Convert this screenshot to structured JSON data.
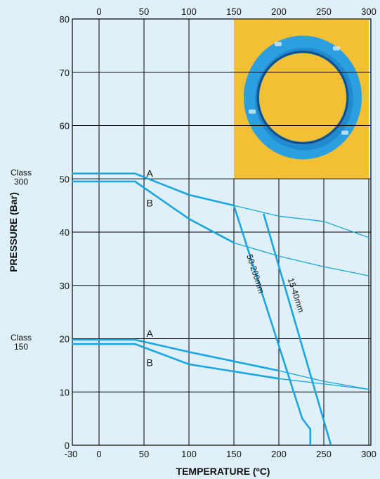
{
  "colors": {
    "background": "#dff0f8",
    "grid": "#000000",
    "curve": "#1aa6e0",
    "photo_bg": "#f2bf35",
    "gasket_outer": "#2b9fe0",
    "gasket_inner": "#1c7fc4"
  },
  "chart_data": {
    "type": "line",
    "xlabel": "TEMPERATURE (ºC)",
    "ylabel": "PRESSURE (Bar)",
    "xlim": [
      -30,
      300
    ],
    "ylim": [
      0,
      80
    ],
    "x_ticks_bottom": [
      "-30",
      "0",
      "50",
      "100",
      "150",
      "200",
      "250",
      "300"
    ],
    "x_ticks_top": [
      "0",
      "50",
      "100",
      "150",
      "200",
      "250",
      "300"
    ],
    "y_ticks": [
      "0",
      "10",
      "20",
      "30",
      "40",
      "50",
      "60",
      "70",
      "80"
    ],
    "grid": true,
    "class_labels": [
      {
        "line1": "Class",
        "line2": "300",
        "y": 50
      },
      {
        "line1": "Class",
        "line2": "150",
        "y": 19
      }
    ],
    "curve_labels": [
      {
        "text": "A",
        "x": 48,
        "y": 51
      },
      {
        "text": "B",
        "x": 48,
        "y": 45.5
      },
      {
        "text": "A",
        "x": 48,
        "y": 21
      },
      {
        "text": "B",
        "x": 48,
        "y": 15.5
      }
    ],
    "size_labels": [
      {
        "text": "50-200mm",
        "x": 171,
        "y": 32
      },
      {
        "text": "15-40mm",
        "x": 216,
        "y": 28
      }
    ],
    "series": [
      {
        "id": "c300A",
        "width": 2.6,
        "points": [
          [
            -30,
            51
          ],
          [
            40,
            51
          ],
          [
            100,
            47
          ],
          [
            150,
            45
          ]
        ]
      },
      {
        "id": "c300A_thin",
        "width": 1.3,
        "points": [
          [
            150,
            45
          ],
          [
            200,
            43
          ],
          [
            250,
            42
          ],
          [
            300,
            39
          ]
        ]
      },
      {
        "id": "c300B",
        "width": 2.6,
        "points": [
          [
            -30,
            49.5
          ],
          [
            40,
            49.5
          ],
          [
            100,
            42.5
          ],
          [
            150,
            38
          ]
        ]
      },
      {
        "id": "c300B_thin",
        "width": 1.3,
        "points": [
          [
            150,
            38
          ],
          [
            200,
            35.5
          ],
          [
            250,
            33.5
          ],
          [
            300,
            31.8
          ]
        ]
      },
      {
        "id": "c150A",
        "width": 2.6,
        "points": [
          [
            -30,
            19.8
          ],
          [
            40,
            19.8
          ],
          [
            100,
            17.5
          ],
          [
            200,
            14
          ]
        ]
      },
      {
        "id": "c150A_thin",
        "width": 1.3,
        "points": [
          [
            200,
            14
          ],
          [
            250,
            12
          ],
          [
            300,
            10.5
          ]
        ]
      },
      {
        "id": "c150B",
        "width": 2.6,
        "points": [
          [
            -30,
            19
          ],
          [
            40,
            19
          ],
          [
            100,
            15.2
          ],
          [
            200,
            12.5
          ]
        ]
      },
      {
        "id": "c150B_thin",
        "width": 1.3,
        "points": [
          [
            200,
            12.5
          ],
          [
            250,
            11.5
          ],
          [
            300,
            10.5
          ]
        ]
      },
      {
        "id": "lim50_200",
        "width": 2.6,
        "points": [
          [
            150,
            45
          ],
          [
            226,
            5
          ],
          [
            235,
            3
          ],
          [
            235,
            0
          ]
        ]
      },
      {
        "id": "lim15_40",
        "width": 2.6,
        "points": [
          [
            183,
            43.5
          ],
          [
            258,
            0
          ]
        ]
      }
    ]
  },
  "photo": {
    "x0": 150,
    "x1": 300,
    "y0": 50,
    "y1": 80
  }
}
